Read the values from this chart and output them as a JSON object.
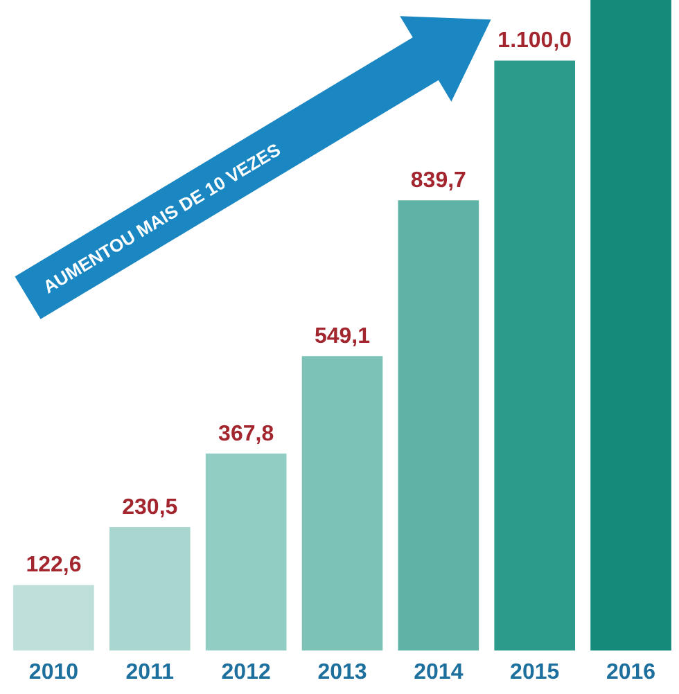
{
  "chart_data": {
    "type": "bar",
    "categories": [
      "2010",
      "2011",
      "2012",
      "2013",
      "2014",
      "2015",
      "2016"
    ],
    "values": [
      122.6,
      230.5,
      367.8,
      549.1,
      839.7,
      1100.0,
      1213
    ],
    "colors": [
      "#bfe0da",
      "#a9d7cf",
      "#92cdc3",
      "#7cc2b6",
      "#5fb3a6",
      "#2d9b8c",
      "#158a7a"
    ],
    "value_labels": [
      "122,6",
      "230,5",
      "367,8",
      "549,1",
      "839,7",
      "1.100,0",
      null
    ],
    "ylim": [
      0,
      1213
    ],
    "grid": false,
    "legend": false,
    "annotations": [
      "AUMENTOU MAIS DE 10 VEZES"
    ]
  }
}
